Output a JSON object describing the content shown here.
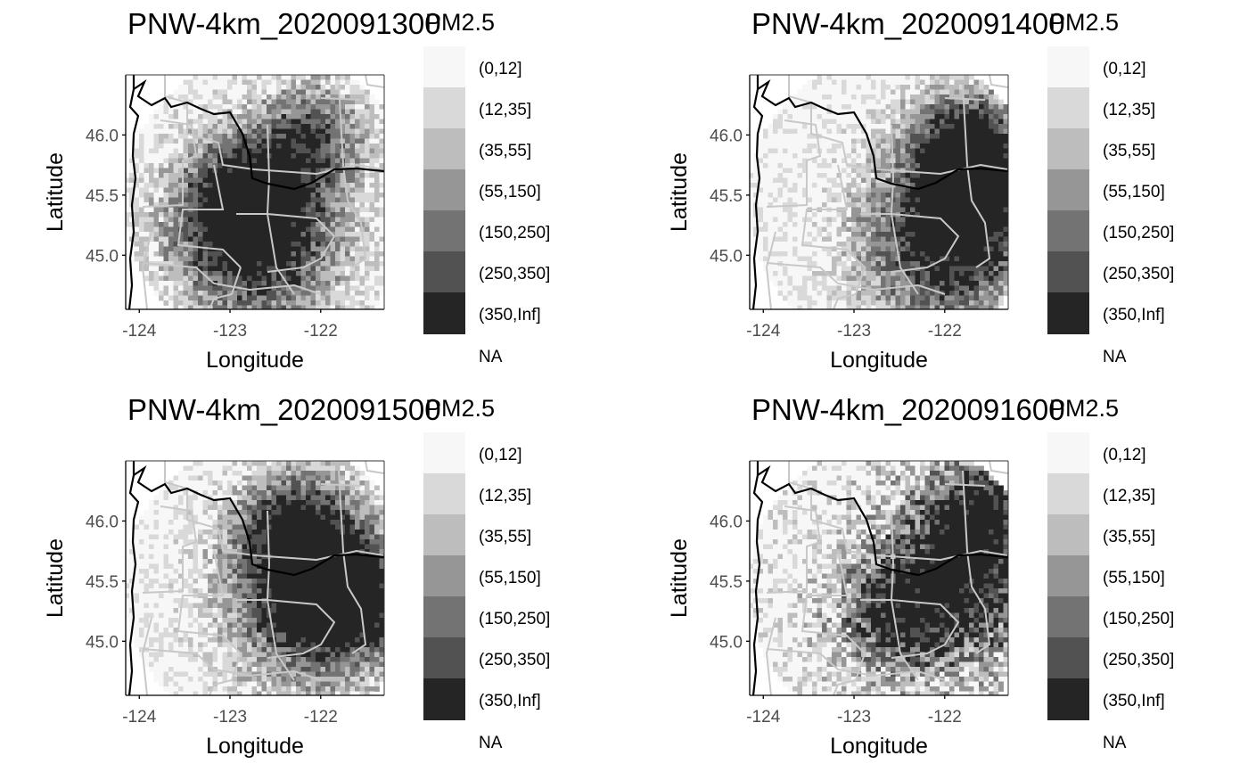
{
  "chart_data": [
    {
      "type": "heatmap",
      "title": "PNW-4km_2020091300",
      "xlabel": "Longitude",
      "ylabel": "Latitude",
      "xticks": [
        "-124",
        "-123",
        "-122"
      ],
      "yticks": [
        "45.0",
        "45.5",
        "46.0"
      ],
      "xlim": [
        -124.15,
        -121.3
      ],
      "ylim": [
        44.55,
        46.5
      ],
      "legend_title": "PM2.5",
      "legend_position": "right",
      "plume_centers": [
        {
          "lon": -122.7,
          "lat": 45.1
        },
        {
          "lon": -122.9,
          "lat": 45.5
        },
        {
          "lon": -122.1,
          "lat": 46.0
        }
      ]
    },
    {
      "type": "heatmap",
      "title": "PNW-4km_2020091400",
      "xlabel": "Longitude",
      "ylabel": "Latitude",
      "xticks": [
        "-124",
        "-123",
        "-122"
      ],
      "yticks": [
        "45.0",
        "45.5",
        "46.0"
      ],
      "xlim": [
        -124.15,
        -121.3
      ],
      "ylim": [
        44.55,
        46.5
      ],
      "legend_title": "PM2.5",
      "legend_position": "right",
      "plume_centers": [
        {
          "lon": -122.0,
          "lat": 45.1
        },
        {
          "lon": -121.8,
          "lat": 46.0
        },
        {
          "lon": -121.6,
          "lat": 45.6
        }
      ]
    },
    {
      "type": "heatmap",
      "title": "PNW-4km_2020091500",
      "xlabel": "Longitude",
      "ylabel": "Latitude",
      "xticks": [
        "-124",
        "-123",
        "-122"
      ],
      "yticks": [
        "45.0",
        "45.5",
        "46.0"
      ],
      "xlim": [
        -124.15,
        -121.3
      ],
      "ylim": [
        44.55,
        46.5
      ],
      "legend_title": "PM2.5",
      "legend_position": "right",
      "plume_centers": [
        {
          "lon": -122.1,
          "lat": 45.35
        },
        {
          "lon": -121.7,
          "lat": 45.4
        },
        {
          "lon": -122.3,
          "lat": 46.0
        }
      ]
    },
    {
      "type": "heatmap",
      "title": "PNW-4km_2020091600",
      "xlabel": "Longitude",
      "ylabel": "Latitude",
      "xticks": [
        "-124",
        "-123",
        "-122"
      ],
      "yticks": [
        "45.0",
        "45.5",
        "46.0"
      ],
      "xlim": [
        -124.15,
        -121.3
      ],
      "ylim": [
        44.55,
        46.5
      ],
      "legend_title": "PM2.5",
      "legend_position": "right",
      "plume_centers": [
        {
          "lon": -121.8,
          "lat": 45.5
        },
        {
          "lon": -121.6,
          "lat": 46.1
        },
        {
          "lon": -122.6,
          "lat": 45.2
        }
      ]
    }
  ],
  "legend": {
    "title": "PM2.5",
    "classes": [
      "(0,12]",
      "(12,35]",
      "(35,55]",
      "(55,150]",
      "(150,250]",
      "(250,350]",
      "(350,Inf]"
    ],
    "colors": [
      "#f7f7f7",
      "#d9d9d9",
      "#bdbdbd",
      "#969696",
      "#737373",
      "#525252",
      "#252525"
    ],
    "na_label": "NA"
  },
  "colors": {
    "coastline": "#000000",
    "boundaries": "#c8c8c8",
    "axis": "#000000",
    "tick_text": "#4d4d4d"
  }
}
